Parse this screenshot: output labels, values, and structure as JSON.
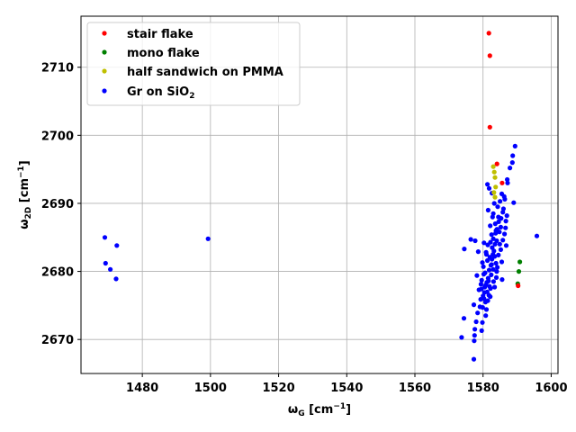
{
  "chart_data": {
    "type": "scatter",
    "title": "",
    "xlabel": {
      "main": "ω",
      "sub": "G",
      "rest": " [cm",
      "sup": "−1",
      "end": "]"
    },
    "ylabel": {
      "main": "ω",
      "sub": "2D",
      "rest": " [cm",
      "sup": "−1",
      "end": "]"
    },
    "xlim": [
      1462.0,
      1602.0
    ],
    "ylim": [
      2665.0,
      2717.5
    ],
    "xticks": [
      1480,
      1500,
      1520,
      1540,
      1560,
      1580,
      1600
    ],
    "yticks": [
      2670,
      2680,
      2690,
      2700,
      2710
    ],
    "grid": true,
    "legend_position": "top-left",
    "legend": [
      {
        "main": "stair flake",
        "sub": "",
        "color": "#ff0000"
      },
      {
        "main": "mono flake",
        "sub": "",
        "color": "#008000"
      },
      {
        "main": "half sandwich on PMMA",
        "sub": "",
        "color": "#bfbf00"
      },
      {
        "main": "Gr on SiO",
        "sub": "2",
        "color": "#0000ff"
      }
    ],
    "series": [
      {
        "name": "Gr on SiO2",
        "color": "#0000ff",
        "points": [
          [
            1469.0,
            2685.0
          ],
          [
            1472.5,
            2683.8
          ],
          [
            1469.2,
            2681.2
          ],
          [
            1470.6,
            2680.3
          ],
          [
            1472.3,
            2678.9
          ],
          [
            1499.3,
            2684.8
          ],
          [
            1595.8,
            2685.2
          ],
          [
            1589.4,
            2698.4
          ],
          [
            1588.7,
            2697.0
          ],
          [
            1588.6,
            2696.0
          ],
          [
            1587.9,
            2695.2
          ],
          [
            1587.2,
            2693.0
          ],
          [
            1587.1,
            2693.5
          ],
          [
            1585.5,
            2691.4
          ],
          [
            1586.4,
            2690.6
          ],
          [
            1589.0,
            2690.1
          ],
          [
            1581.3,
            2692.8
          ],
          [
            1581.8,
            2692.2
          ],
          [
            1582.6,
            2691.5
          ],
          [
            1583.3,
            2690.0
          ],
          [
            1584.3,
            2689.5
          ],
          [
            1583.0,
            2688.5
          ],
          [
            1585.8,
            2688.7
          ],
          [
            1584.6,
            2687.3
          ],
          [
            1586.7,
            2687.4
          ],
          [
            1582.1,
            2686.7
          ],
          [
            1585.2,
            2686.5
          ],
          [
            1583.7,
            2685.6
          ],
          [
            1576.4,
            2684.7
          ],
          [
            1577.7,
            2684.5
          ],
          [
            1580.3,
            2684.2
          ],
          [
            1582.2,
            2684.3
          ],
          [
            1584.9,
            2684.0
          ],
          [
            1586.8,
            2683.8
          ],
          [
            1574.5,
            2683.3
          ],
          [
            1578.6,
            2682.9
          ],
          [
            1581.0,
            2682.5
          ],
          [
            1583.4,
            2682.2
          ],
          [
            1585.5,
            2681.4
          ],
          [
            1579.8,
            2681.3
          ],
          [
            1582.3,
            2680.9
          ],
          [
            1584.2,
            2680.6
          ],
          [
            1580.6,
            2679.8
          ],
          [
            1578.2,
            2679.4
          ],
          [
            1583.9,
            2679.1
          ],
          [
            1585.6,
            2678.8
          ],
          [
            1581.1,
            2678.4
          ],
          [
            1579.4,
            2678.1
          ],
          [
            1583.4,
            2677.7
          ],
          [
            1578.8,
            2677.3
          ],
          [
            1580.4,
            2676.9
          ],
          [
            1582.1,
            2676.3
          ],
          [
            1579.3,
            2675.9
          ],
          [
            1577.3,
            2675.1
          ],
          [
            1579.1,
            2674.8
          ],
          [
            1581.0,
            2674.4
          ],
          [
            1578.4,
            2673.9
          ],
          [
            1580.8,
            2673.5
          ],
          [
            1574.4,
            2673.1
          ],
          [
            1578.0,
            2672.6
          ],
          [
            1579.8,
            2672.5
          ],
          [
            1577.6,
            2671.5
          ],
          [
            1579.6,
            2671.3
          ],
          [
            1577.5,
            2670.6
          ],
          [
            1573.7,
            2670.3
          ],
          [
            1577.4,
            2669.8
          ],
          [
            1577.3,
            2667.1
          ],
          [
            1581.5,
            2689.0
          ],
          [
            1582.8,
            2688.0
          ],
          [
            1583.6,
            2687.0
          ],
          [
            1584.1,
            2686.2
          ],
          [
            1582.5,
            2685.4
          ],
          [
            1583.0,
            2684.8
          ],
          [
            1581.4,
            2683.9
          ],
          [
            1582.7,
            2683.5
          ],
          [
            1580.9,
            2682.8
          ],
          [
            1582.0,
            2682.1
          ],
          [
            1581.3,
            2681.6
          ],
          [
            1580.1,
            2680.7
          ],
          [
            1581.8,
            2680.2
          ],
          [
            1580.2,
            2679.6
          ],
          [
            1581.5,
            2679.0
          ],
          [
            1579.6,
            2678.7
          ],
          [
            1580.8,
            2678.0
          ],
          [
            1579.5,
            2677.4
          ],
          [
            1581.2,
            2677.0
          ],
          [
            1580.0,
            2676.4
          ],
          [
            1580.7,
            2675.5
          ],
          [
            1579.9,
            2674.7
          ],
          [
            1582.5,
            2681.0
          ],
          [
            1583.2,
            2683.0
          ],
          [
            1584.0,
            2684.5
          ],
          [
            1584.8,
            2685.8
          ],
          [
            1585.3,
            2687.8
          ],
          [
            1586.0,
            2689.2
          ],
          [
            1586.2,
            2691.0
          ],
          [
            1585.0,
            2690.3
          ],
          [
            1584.5,
            2688.0
          ],
          [
            1583.8,
            2686.0
          ],
          [
            1583.5,
            2684.0
          ],
          [
            1582.9,
            2682.5
          ],
          [
            1582.6,
            2681.8
          ],
          [
            1581.6,
            2678.6
          ],
          [
            1581.9,
            2677.8
          ],
          [
            1580.5,
            2677.7
          ],
          [
            1582.4,
            2679.5
          ],
          [
            1583.0,
            2680.3
          ],
          [
            1583.8,
            2681.2
          ],
          [
            1584.5,
            2682.4
          ],
          [
            1585.2,
            2683.2
          ],
          [
            1585.8,
            2684.6
          ],
          [
            1586.3,
            2685.5
          ],
          [
            1586.6,
            2686.4
          ],
          [
            1587.0,
            2688.2
          ],
          [
            1584.0,
            2680.0
          ],
          [
            1583.1,
            2678.5
          ],
          [
            1582.2,
            2677.5
          ],
          [
            1581.7,
            2676.5
          ],
          [
            1580.3,
            2676.0
          ],
          [
            1581.4,
            2675.7
          ]
        ]
      },
      {
        "name": "half sandwich on PMMA",
        "color": "#bfbf00",
        "points": [
          [
            1583.0,
            2695.4
          ],
          [
            1583.3,
            2694.6
          ],
          [
            1583.5,
            2693.8
          ],
          [
            1583.7,
            2692.4
          ],
          [
            1583.2,
            2691.6
          ],
          [
            1583.5,
            2690.9
          ]
        ]
      },
      {
        "name": "mono flake",
        "color": "#008000",
        "points": [
          [
            1590.8,
            2681.4
          ],
          [
            1590.5,
            2680.0
          ],
          [
            1590.2,
            2678.2
          ]
        ]
      },
      {
        "name": "stair flake",
        "color": "#ff0000",
        "points": [
          [
            1581.7,
            2715.0
          ],
          [
            1582.0,
            2711.7
          ],
          [
            1582.0,
            2701.2
          ],
          [
            1584.1,
            2695.8
          ],
          [
            1585.6,
            2693.0
          ],
          [
            1590.3,
            2677.9
          ]
        ]
      }
    ]
  }
}
